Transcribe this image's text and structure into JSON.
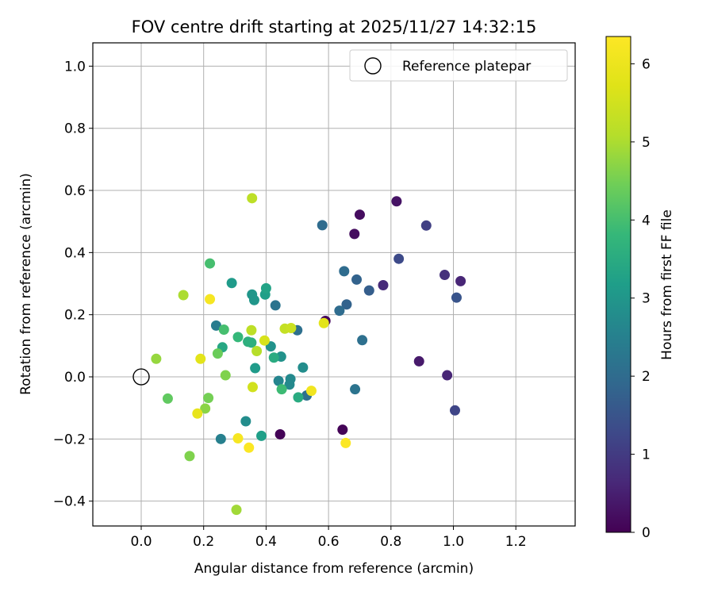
{
  "chart_data": {
    "type": "scatter",
    "title": "FOV centre drift starting at 2025/11/27 14:32:15",
    "xlabel": "Angular distance from reference (arcmin)",
    "ylabel": "Rotation from reference (arcmin)",
    "xlim": [
      -0.155,
      1.39
    ],
    "ylim": [
      -0.48,
      1.075
    ],
    "xticks": [
      0.0,
      0.2,
      0.4,
      0.6,
      0.8,
      1.0,
      1.2
    ],
    "xtick_labels": [
      "0.0",
      "0.2",
      "0.4",
      "0.6",
      "0.8",
      "1.0",
      "1.2"
    ],
    "yticks": [
      -0.4,
      -0.2,
      0.0,
      0.2,
      0.4,
      0.6,
      0.8,
      1.0
    ],
    "ytick_labels": [
      "−0.4",
      "−0.2",
      "0.0",
      "0.2",
      "0.4",
      "0.6",
      "0.8",
      "1.0"
    ],
    "grid": true,
    "legend": {
      "position": "upper-right",
      "entries": [
        "Reference platepar"
      ]
    },
    "reference": {
      "x": 0.0,
      "y": 0.0,
      "label": "Reference platepar"
    },
    "colorbar": {
      "label": "Hours from first FF file",
      "colormap": "viridis",
      "range": [
        0,
        6.35
      ],
      "ticks": [
        0,
        1,
        2,
        3,
        4,
        5,
        6
      ],
      "tick_labels": [
        "0",
        "1",
        "2",
        "3",
        "4",
        "5",
        "6"
      ]
    },
    "points": [
      {
        "x": 0.445,
        "y": -0.185,
        "h": 0.05
      },
      {
        "x": 0.645,
        "y": -0.17,
        "h": 0.05
      },
      {
        "x": 0.59,
        "y": 0.18,
        "h": 0.1
      },
      {
        "x": 0.7,
        "y": 0.522,
        "h": 0.2
      },
      {
        "x": 0.683,
        "y": 0.46,
        "h": 0.2
      },
      {
        "x": 0.818,
        "y": 0.565,
        "h": 0.3
      },
      {
        "x": 0.89,
        "y": 0.05,
        "h": 0.4
      },
      {
        "x": 0.98,
        "y": 0.005,
        "h": 0.6
      },
      {
        "x": 1.023,
        "y": 0.308,
        "h": 0.6
      },
      {
        "x": 0.775,
        "y": 0.295,
        "h": 0.7
      },
      {
        "x": 0.972,
        "y": 0.328,
        "h": 0.8
      },
      {
        "x": 0.913,
        "y": 0.487,
        "h": 1.1
      },
      {
        "x": 1.005,
        "y": -0.108,
        "h": 1.2
      },
      {
        "x": 0.825,
        "y": 0.38,
        "h": 1.3
      },
      {
        "x": 1.01,
        "y": 0.255,
        "h": 1.5
      },
      {
        "x": 0.73,
        "y": 0.278,
        "h": 1.7
      },
      {
        "x": 0.69,
        "y": 0.313,
        "h": 1.8
      },
      {
        "x": 0.658,
        "y": 0.233,
        "h": 1.8
      },
      {
        "x": 0.635,
        "y": 0.213,
        "h": 2.0
      },
      {
        "x": 0.65,
        "y": 0.34,
        "h": 2.0
      },
      {
        "x": 0.58,
        "y": 0.488,
        "h": 2.0
      },
      {
        "x": 0.708,
        "y": 0.118,
        "h": 2.1
      },
      {
        "x": 0.5,
        "y": 0.15,
        "h": 2.1
      },
      {
        "x": 0.53,
        "y": -0.06,
        "h": 2.1
      },
      {
        "x": 0.43,
        "y": 0.23,
        "h": 2.2
      },
      {
        "x": 0.685,
        "y": -0.04,
        "h": 2.2
      },
      {
        "x": 0.24,
        "y": 0.165,
        "h": 2.4
      },
      {
        "x": 0.255,
        "y": -0.2,
        "h": 2.5
      },
      {
        "x": 0.44,
        "y": -0.013,
        "h": 2.6
      },
      {
        "x": 0.475,
        "y": -0.025,
        "h": 2.7
      },
      {
        "x": 0.478,
        "y": -0.007,
        "h": 2.7
      },
      {
        "x": 0.518,
        "y": 0.03,
        "h": 2.8
      },
      {
        "x": 0.335,
        "y": -0.143,
        "h": 2.8
      },
      {
        "x": 0.448,
        "y": 0.065,
        "h": 2.9
      },
      {
        "x": 0.415,
        "y": 0.098,
        "h": 2.9
      },
      {
        "x": 0.355,
        "y": 0.265,
        "h": 3.0
      },
      {
        "x": 0.362,
        "y": 0.247,
        "h": 3.0
      },
      {
        "x": 0.29,
        "y": 0.302,
        "h": 3.1
      },
      {
        "x": 0.365,
        "y": 0.028,
        "h": 3.1
      },
      {
        "x": 0.385,
        "y": -0.19,
        "h": 3.2
      },
      {
        "x": 0.397,
        "y": 0.265,
        "h": 3.2
      },
      {
        "x": 0.4,
        "y": 0.285,
        "h": 3.3
      },
      {
        "x": 0.26,
        "y": 0.095,
        "h": 3.4
      },
      {
        "x": 0.503,
        "y": -0.066,
        "h": 3.5
      },
      {
        "x": 0.425,
        "y": 0.062,
        "h": 3.5
      },
      {
        "x": 0.342,
        "y": 0.113,
        "h": 3.6
      },
      {
        "x": 0.353,
        "y": 0.11,
        "h": 3.6
      },
      {
        "x": 0.31,
        "y": 0.128,
        "h": 3.8
      },
      {
        "x": 0.45,
        "y": -0.04,
        "h": 3.9
      },
      {
        "x": 0.22,
        "y": 0.365,
        "h": 4.0
      },
      {
        "x": 0.265,
        "y": 0.152,
        "h": 4.0
      },
      {
        "x": 0.085,
        "y": -0.07,
        "h": 4.3
      },
      {
        "x": 0.245,
        "y": 0.075,
        "h": 4.4
      },
      {
        "x": 0.215,
        "y": -0.068,
        "h": 4.5
      },
      {
        "x": 0.27,
        "y": 0.005,
        "h": 4.6
      },
      {
        "x": 0.155,
        "y": -0.255,
        "h": 4.6
      },
      {
        "x": 0.205,
        "y": -0.102,
        "h": 4.7
      },
      {
        "x": 0.048,
        "y": 0.058,
        "h": 4.8
      },
      {
        "x": 0.305,
        "y": -0.428,
        "h": 4.9
      },
      {
        "x": 0.135,
        "y": 0.263,
        "h": 5.0
      },
      {
        "x": 0.37,
        "y": 0.083,
        "h": 5.1
      },
      {
        "x": 0.355,
        "y": 0.575,
        "h": 5.2
      },
      {
        "x": 0.353,
        "y": 0.15,
        "h": 5.2
      },
      {
        "x": 0.46,
        "y": 0.155,
        "h": 5.3
      },
      {
        "x": 0.48,
        "y": 0.157,
        "h": 5.4
      },
      {
        "x": 0.357,
        "y": -0.033,
        "h": 5.5
      },
      {
        "x": 0.395,
        "y": 0.117,
        "h": 5.6
      },
      {
        "x": 0.585,
        "y": 0.173,
        "h": 5.8
      },
      {
        "x": 0.19,
        "y": 0.058,
        "h": 5.8
      },
      {
        "x": 0.18,
        "y": -0.118,
        "h": 5.9
      },
      {
        "x": 0.545,
        "y": -0.045,
        "h": 6.1
      },
      {
        "x": 0.22,
        "y": 0.25,
        "h": 6.2
      },
      {
        "x": 0.31,
        "y": -0.198,
        "h": 6.2
      },
      {
        "x": 0.345,
        "y": -0.228,
        "h": 6.3
      },
      {
        "x": 0.655,
        "y": -0.213,
        "h": 6.3
      }
    ]
  }
}
